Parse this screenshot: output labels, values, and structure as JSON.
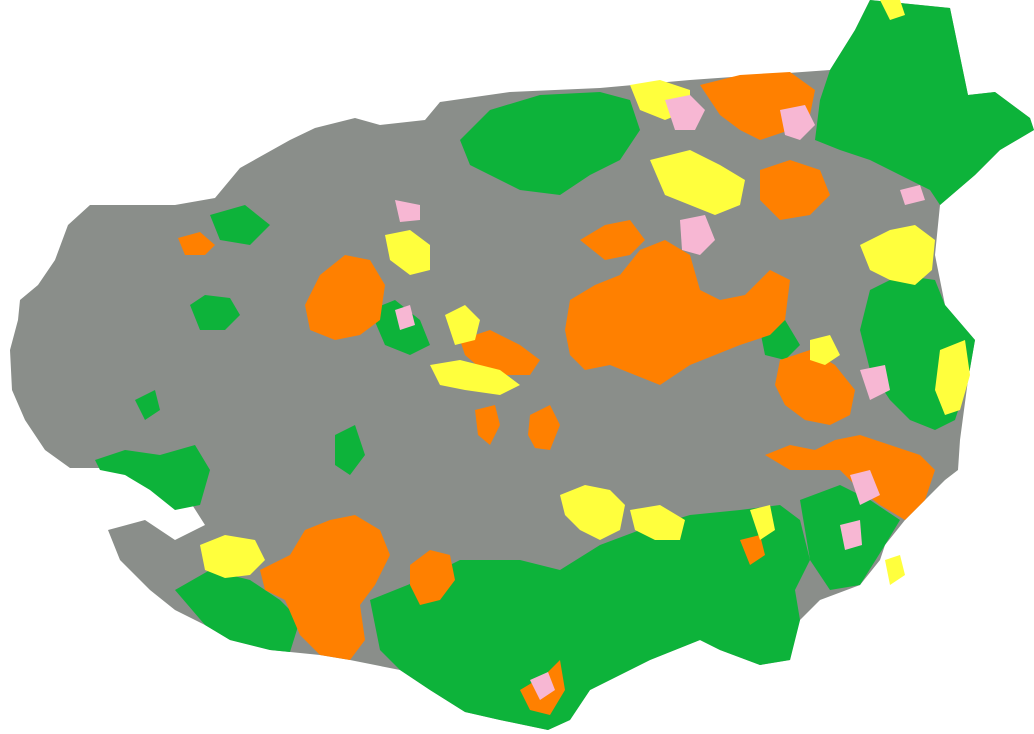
{
  "map": {
    "background_color": "#ffffff",
    "classes": [
      {
        "key": "gray",
        "color": "#8a8e8a"
      },
      {
        "key": "green",
        "color": "#0db33a"
      },
      {
        "key": "orange",
        "color": "#ff8000"
      },
      {
        "key": "yellow",
        "color": "#ffff3d"
      },
      {
        "key": "pink",
        "color": "#f7b7d3"
      }
    ]
  }
}
